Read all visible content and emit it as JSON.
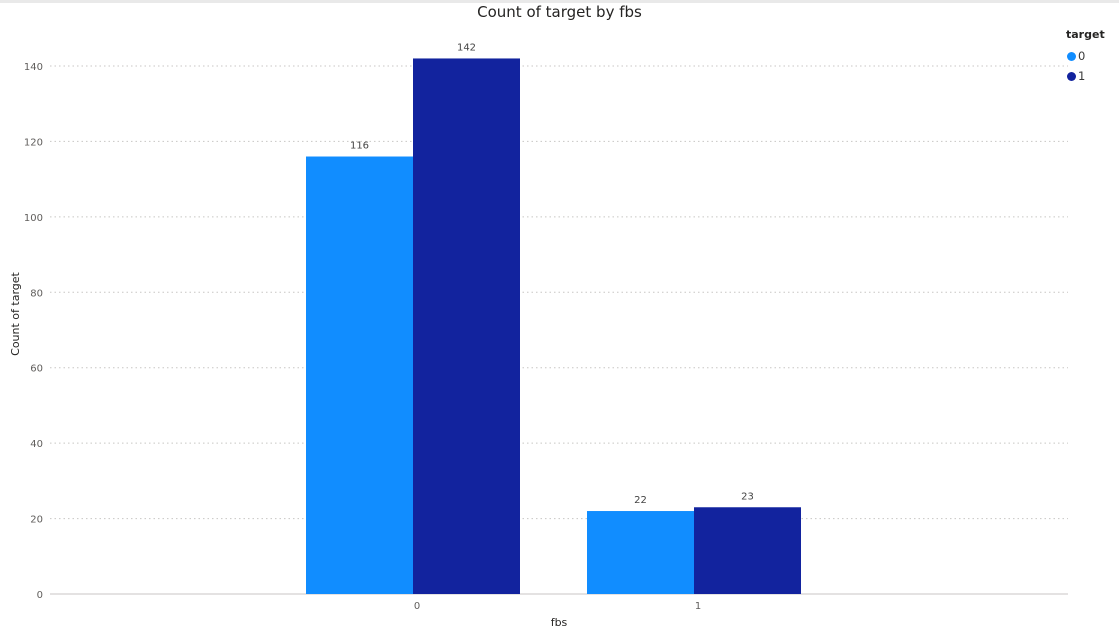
{
  "chart_data": {
    "type": "bar",
    "title": "Count of target by fbs",
    "xlabel": "fbs",
    "ylabel": "Count of target",
    "categories": [
      "0",
      "1"
    ],
    "series": [
      {
        "name": "0",
        "values": [
          116,
          22
        ],
        "color": "#118DFF"
      },
      {
        "name": "1",
        "values": [
          142,
          23
        ],
        "color": "#12239E"
      }
    ],
    "ylim": [
      0,
      140
    ],
    "yticks": [
      0,
      20,
      40,
      60,
      80,
      100,
      120,
      140
    ],
    "legend": {
      "title": "target",
      "position": "top-right"
    },
    "grid": true,
    "data_labels": true
  }
}
